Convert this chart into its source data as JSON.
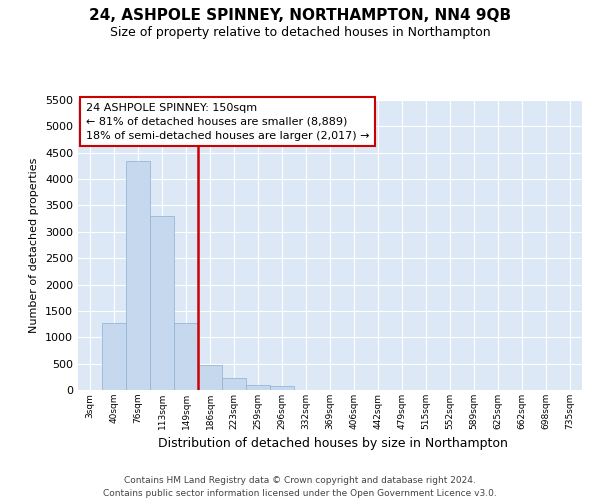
{
  "title": "24, ASHPOLE SPINNEY, NORTHAMPTON, NN4 9QB",
  "subtitle": "Size of property relative to detached houses in Northampton",
  "xlabel": "Distribution of detached houses by size in Northampton",
  "ylabel": "Number of detached properties",
  "bar_color": "#c5d8ee",
  "bar_edge_color": "#8ab0d4",
  "vline_color": "#cc0000",
  "vline_bin_index": 4,
  "annotation_text": "24 ASHPOLE SPINNEY: 150sqm\n← 81% of detached houses are smaller (8,889)\n18% of semi-detached houses are larger (2,017) →",
  "categories": [
    "3sqm",
    "40sqm",
    "76sqm",
    "113sqm",
    "149sqm",
    "186sqm",
    "223sqm",
    "259sqm",
    "296sqm",
    "332sqm",
    "369sqm",
    "406sqm",
    "442sqm",
    "479sqm",
    "515sqm",
    "552sqm",
    "589sqm",
    "625sqm",
    "662sqm",
    "698sqm",
    "735sqm"
  ],
  "values": [
    0,
    1280,
    4350,
    3300,
    1280,
    480,
    230,
    100,
    70,
    0,
    0,
    0,
    0,
    0,
    0,
    0,
    0,
    0,
    0,
    0,
    0
  ],
  "ylim": [
    0,
    5500
  ],
  "yticks": [
    0,
    500,
    1000,
    1500,
    2000,
    2500,
    3000,
    3500,
    4000,
    4500,
    5000,
    5500
  ],
  "plot_bg_color": "#dce8f5",
  "grid_color": "#ffffff",
  "fig_bg_color": "#ffffff",
  "footer_line1": "Contains HM Land Registry data © Crown copyright and database right 2024.",
  "footer_line2": "Contains public sector information licensed under the Open Government Licence v3.0."
}
